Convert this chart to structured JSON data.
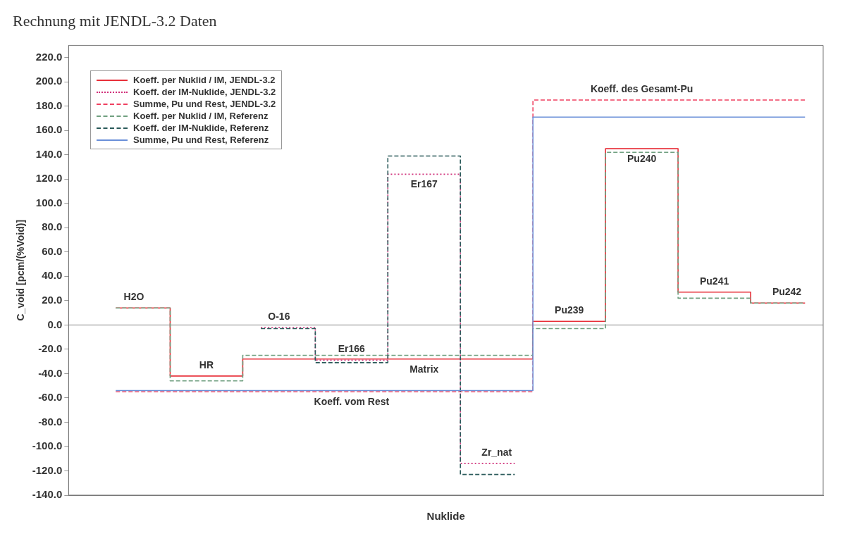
{
  "chart_data": {
    "type": "step",
    "title": "Rechnung mit JENDL-3.2 Daten",
    "xlabel": "Nuklide",
    "ylabel": "C_void [pcm/(%Void)]",
    "categories": [
      null,
      null,
      null,
      null,
      null,
      null,
      null,
      null,
      null,
      null,
      null,
      null,
      null,
      null,
      null,
      null,
      null,
      null,
      null,
      null
    ],
    "ylim": [
      -140,
      230
    ],
    "yticks": [
      {
        "value": -140,
        "label": "-140.0"
      },
      {
        "value": -120,
        "label": "-120.0"
      },
      {
        "value": -100,
        "label": "-100.0"
      },
      {
        "value": -80,
        "label": "-80.0"
      },
      {
        "value": -60,
        "label": "-60.0"
      },
      {
        "value": -40,
        "label": "-40.0"
      },
      {
        "value": -20,
        "label": "-20.0"
      },
      {
        "value": 0,
        "label": "0.0"
      },
      {
        "value": 20,
        "label": "20.0"
      },
      {
        "value": 40,
        "label": "40.0"
      },
      {
        "value": 60,
        "label": "60.0"
      },
      {
        "value": 80,
        "label": "80.0"
      },
      {
        "value": 100,
        "label": "100.0"
      },
      {
        "value": 120,
        "label": "120.0"
      },
      {
        "value": 140,
        "label": "140.0"
      },
      {
        "value": 160,
        "label": "160.0"
      },
      {
        "value": 180,
        "label": "180.0"
      },
      {
        "value": 200,
        "label": "200.0"
      },
      {
        "value": 220,
        "label": "220.0"
      }
    ],
    "tick_labels": "y",
    "grid": false,
    "legend": "top left",
    "series": [
      {
        "name": "Koeff. per Nuklid / IM, JENDL-3.2",
        "color": "#e8303a",
        "line_style": "solid",
        "values": [
          14,
          14,
          -42,
          -42,
          -28,
          -28,
          -28,
          -28,
          -28,
          -28,
          -28,
          -28,
          3,
          3,
          145,
          145,
          27,
          27,
          18,
          18
        ],
        "value_labels": [
          "H2O",
          null,
          "HR",
          null,
          null,
          null,
          null,
          null,
          "Matrix",
          null,
          null,
          null,
          "Pu239",
          null,
          "Pu240",
          null,
          "Pu241",
          null,
          "Pu242",
          null
        ]
      },
      {
        "name": "Koeff. der IM-Nuklide, JENDL-3.2",
        "color": "#d0307a",
        "line_style": "dotted",
        "values": [
          null,
          null,
          null,
          null,
          -2,
          -2,
          -29,
          -29,
          124,
          124,
          -114,
          -114,
          null,
          null,
          null,
          null,
          null,
          null,
          null,
          null
        ],
        "value_labels": [
          null,
          null,
          null,
          null,
          "O-16",
          null,
          "Er166",
          null,
          "Er167",
          null,
          "Zr_nat",
          null,
          null,
          null,
          null,
          null,
          null,
          null,
          null,
          null
        ]
      },
      {
        "name": "Summe, Pu und Rest, JENDL-3.2",
        "color": "#f04060",
        "line_style": "dashed",
        "values": [
          -55,
          -55,
          -55,
          -55,
          -55,
          -55,
          -55,
          -55,
          -55,
          -55,
          -55,
          -55,
          185,
          185,
          185,
          185,
          185,
          185,
          185,
          185
        ],
        "value_labels": [
          null,
          null,
          null,
          null,
          null,
          null,
          "Koeff. vom Rest",
          null,
          null,
          null,
          null,
          null,
          null,
          null,
          "Koeff. des Gesamt-Pu",
          null,
          null,
          null,
          null,
          null
        ]
      },
      {
        "name": "Koeff. per Nuklid / IM, Referenz",
        "color": "#70a080",
        "line_style": "dashed",
        "values": [
          14,
          14,
          -46,
          -46,
          -25,
          -25,
          -25,
          -25,
          -25,
          -25,
          -25,
          -25,
          -3,
          -3,
          142,
          142,
          22,
          22,
          18,
          18
        ]
      },
      {
        "name": "Koeff. der IM-Nuklide, Referenz",
        "color": "#2a5a5a",
        "line_style": "dashed",
        "values": [
          null,
          null,
          null,
          null,
          -3,
          -3,
          -31,
          -31,
          139,
          139,
          -123,
          -123,
          null,
          null,
          null,
          null,
          null,
          null,
          null,
          null
        ]
      },
      {
        "name": "Summe, Pu und Rest, Referenz",
        "color": "#6a8fd8",
        "line_style": "solid",
        "values": [
          -54,
          -54,
          -54,
          -54,
          -54,
          -54,
          -54,
          -54,
          -54,
          -54,
          -54,
          -54,
          171,
          171,
          171,
          171,
          171,
          171,
          171,
          171
        ]
      }
    ],
    "ref_lines": [
      {
        "axis": "y",
        "value": 0,
        "color": "#888888",
        "line_style": "solid"
      }
    ]
  }
}
